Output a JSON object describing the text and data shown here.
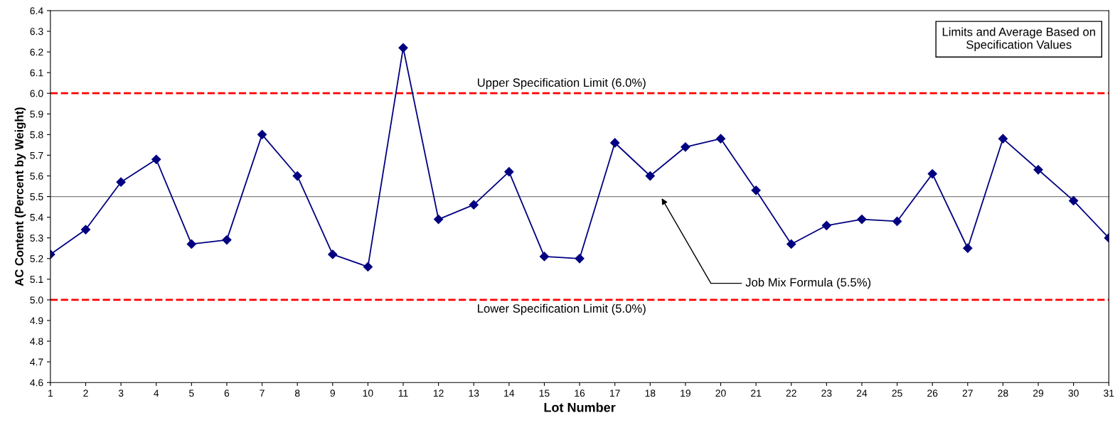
{
  "chart_data": {
    "type": "line",
    "xlabel": "Lot Number",
    "ylabel": "AC Content (Percent by Weight)",
    "categories": [
      "1",
      "2",
      "3",
      "4",
      "5",
      "6",
      "7",
      "8",
      "9",
      "10",
      "11",
      "12",
      "13",
      "14",
      "15",
      "16",
      "17",
      "18",
      "19",
      "20",
      "21",
      "22",
      "23",
      "24",
      "25",
      "26",
      "27",
      "28",
      "29",
      "30",
      "31"
    ],
    "series": [
      {
        "color": "#000080",
        "values": [
          5.22,
          5.34,
          5.57,
          5.68,
          5.27,
          5.29,
          5.8,
          5.6,
          5.22,
          5.16,
          6.22,
          5.39,
          5.46,
          5.62,
          5.21,
          5.2,
          5.76,
          5.6,
          5.74,
          5.78,
          5.53,
          5.27,
          5.36,
          5.39,
          5.38,
          5.61,
          5.25,
          5.78,
          5.63,
          5.48,
          5.3
        ]
      }
    ],
    "ylim": [
      4.6,
      6.4
    ],
    "yticks": [
      4.6,
      4.7,
      4.8,
      4.9,
      {
        "value": 5,
        "label": "5.0"
      },
      5.1,
      5.2,
      5.3,
      5.4,
      5.5,
      5.6,
      5.7,
      5.8,
      5.9,
      {
        "value": 6,
        "label": "6.0"
      },
      6.1,
      6.2,
      6.3,
      6.4
    ],
    "marker": "diamond",
    "line_style": "solid",
    "grid": false,
    "ref_lines": [
      {
        "axis": "y",
        "value": 6.0,
        "label": "Upper Specification Limit (6.0%)",
        "color": "#ff0000",
        "line_style": "dashed"
      },
      {
        "axis": "y",
        "value": 5.5,
        "label": "Job Mix Formula (5.5%)",
        "color": "#808080",
        "line_style": "solid"
      },
      {
        "axis": "y",
        "value": 5.0,
        "label": "Lower Specification Limit (5.0%)",
        "color": "#ff0000",
        "line_style": "dashed"
      }
    ],
    "annotations": [
      "Limits and Average Based on\nSpecification Values"
    ]
  }
}
